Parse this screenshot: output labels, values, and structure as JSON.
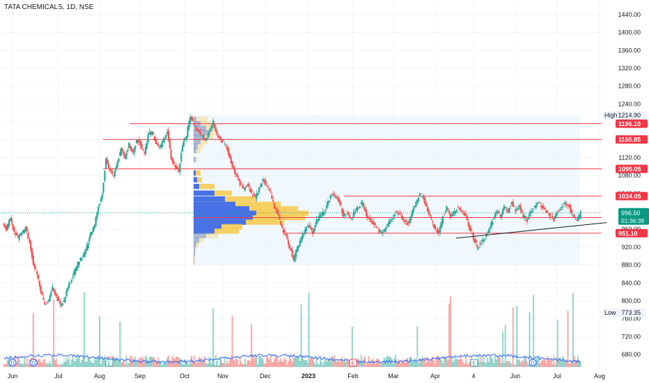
{
  "header": {
    "title": "TATA CHEMICALS, 1D, NSE"
  },
  "chart_data": {
    "type": "candlestick",
    "title": "TATA CHEMICALS, 1D, NSE",
    "ylim": [
      660,
      1460
    ],
    "y_ticks": [
      680,
      720,
      760,
      800,
      840,
      880,
      920,
      960,
      1000,
      1040,
      1080,
      1120,
      1160,
      1200,
      1240,
      1280,
      1320,
      1360,
      1400,
      1440
    ],
    "x_labels": [
      {
        "label": "Jun",
        "px": 18
      },
      {
        "label": "Jul",
        "px": 84
      },
      {
        "label": "Aug",
        "px": 143
      },
      {
        "label": "Sep",
        "px": 201
      },
      {
        "label": "Oct",
        "px": 265
      },
      {
        "label": "Nov",
        "px": 320
      },
      {
        "label": "Dec",
        "px": 381
      },
      {
        "label": "2023",
        "px": 443
      },
      {
        "label": "Feb",
        "px": 507
      },
      {
        "label": "Mar",
        "px": 565
      },
      {
        "label": "Apr",
        "px": 625
      },
      {
        "label": "4",
        "px": 680
      },
      {
        "label": "Jun",
        "px": 740
      },
      {
        "label": "Jul",
        "px": 800
      },
      {
        "label": "Aug",
        "px": 861
      }
    ],
    "price_labels": [
      {
        "text": "High",
        "value": "1214.90",
        "price": 1214.9,
        "style": "plain"
      },
      {
        "text": "",
        "value": "1196.10",
        "price": 1196.1,
        "style": "red"
      },
      {
        "text": "",
        "value": "1160.85",
        "price": 1160.85,
        "style": "red"
      },
      {
        "text": "",
        "value": "1095.05",
        "price": 1095.05,
        "style": "red"
      },
      {
        "text": "",
        "value": "1034.05",
        "price": 1034.05,
        "style": "red"
      },
      {
        "text": "",
        "value": "996.50",
        "price": 996.5,
        "style": "green",
        "sub": "01:36:39"
      },
      {
        "text": "",
        "value": "951.10",
        "price": 951.1,
        "style": "red"
      },
      {
        "text": "Low",
        "value": "773.35",
        "price": 773.35,
        "style": "plain"
      }
    ],
    "horizontal_levels": [
      1196.1,
      1160.85,
      1095.05,
      1034.05,
      986,
      951.1
    ],
    "current_price": 996.5,
    "trendline": {
      "from": [
        923,
        940
      ],
      "to": [
        1004,
        975
      ]
    },
    "volume_profile_range": [
      880,
      1215
    ],
    "event_markers": [
      "D",
      "D",
      "E",
      "E",
      "E",
      "E",
      "D"
    ],
    "colors": {
      "up": "#26a69a",
      "down": "#ef5350",
      "level": "#f23645",
      "profile_blue": "#2962ff",
      "profile_yellow": "#f7c948",
      "current": "#089981"
    },
    "series": [
      {
        "x": "Jun",
        "ohlc_path": [
          975,
          960,
          985,
          955,
          940,
          950,
          965,
          930,
          880,
          860,
          820,
          790,
          800,
          830,
          810,
          790,
          800,
          830,
          850,
          870,
          890,
          900,
          920,
          950,
          970,
          1010,
          1040,
          1120,
          1090,
          1080,
          1110,
          1140,
          1120,
          1150,
          1130,
          1160,
          1150,
          1130,
          1170,
          1180,
          1150,
          1140,
          1160,
          1180,
          1120,
          1100,
          1090,
          1150,
          1170,
          1215,
          1190,
          1180,
          1170,
          1160,
          1180,
          1200,
          1170,
          1160,
          1150,
          1130,
          1100,
          1080,
          1060,
          1050,
          1060,
          1040,
          1030,
          1050,
          1070,
          1060,
          1040,
          1010,
          990,
          960,
          945,
          920,
          890,
          920,
          940,
          960,
          970,
          950,
          980,
          990,
          1000,
          1020,
          1040,
          1030,
          1020,
          990,
          1000,
          980,
          1000,
          1010,
          1020,
          990,
          980,
          970,
          960,
          950,
          960,
          980,
          990,
          1000,
          990,
          980,
          970,
          1000,
          1020,
          1040,
          1030,
          1000,
          980,
          960,
          950,
          990,
          1010,
          990,
          1000,
          1010,
          1000,
          990,
          960,
          940,
          920,
          930,
          940,
          960,
          980,
          1000,
          990,
          1010,
          1000,
          1020,
          1000,
          1010,
          990,
          980,
          1000,
          1010,
          1020,
          1010,
          1000,
          990,
          980,
          1000,
          1010,
          1020,
          1010,
          990,
          980,
          996
        ]
      }
    ]
  }
}
